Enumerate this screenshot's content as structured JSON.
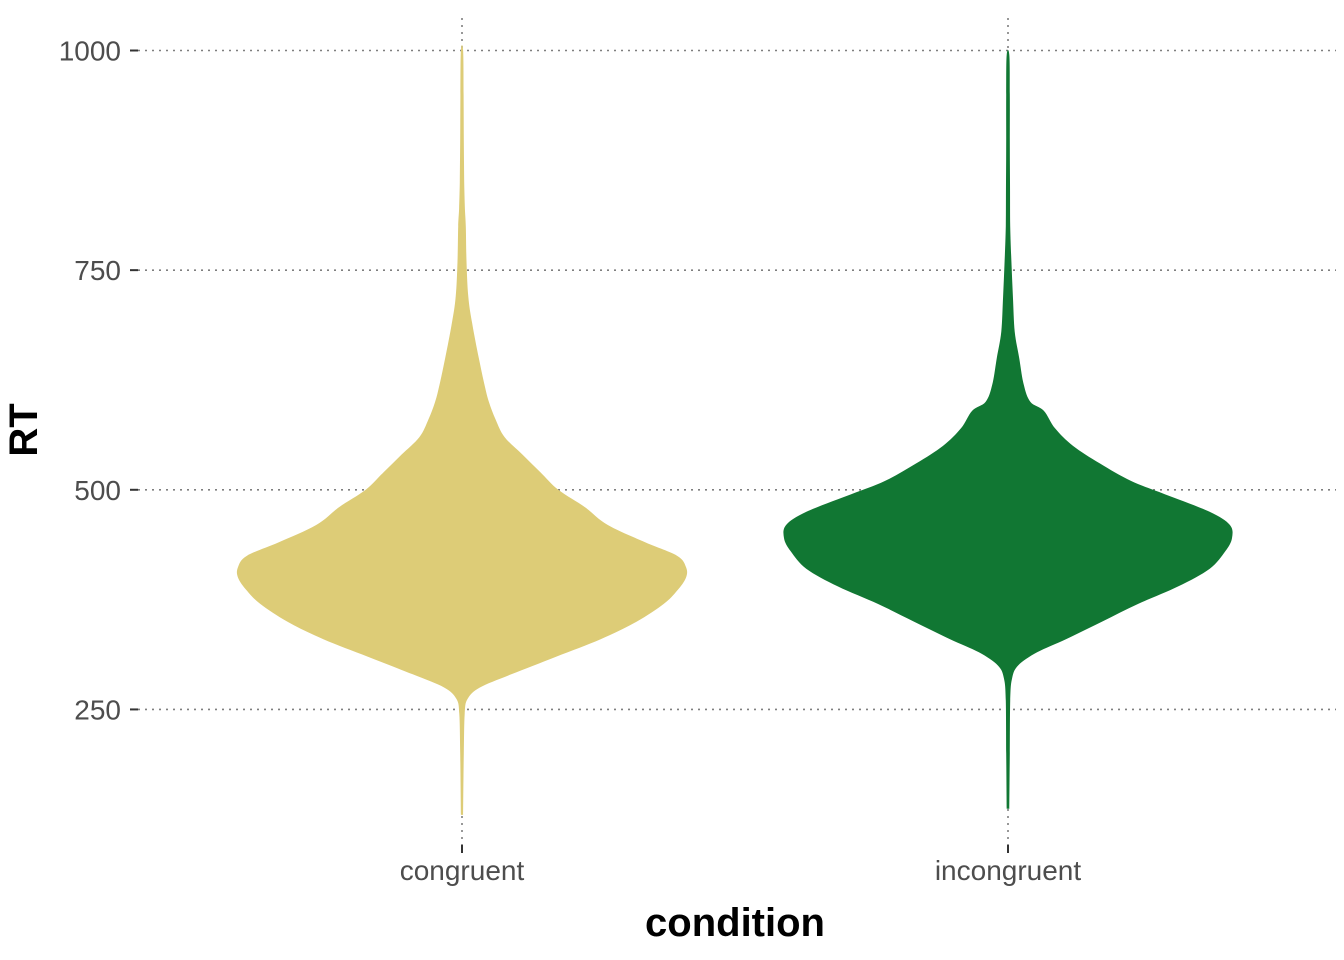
{
  "chart_data": {
    "type": "violin",
    "title": "",
    "xlabel": "condition",
    "ylabel": "RT",
    "categories": [
      "congruent",
      "incongruent"
    ],
    "ylim": [
      90,
      1037
    ],
    "yticks": [
      250,
      500,
      750,
      1000
    ],
    "grid": "major, dotted",
    "legend": "none",
    "series": [
      {
        "category": "congruent",
        "color": "#DDCC77",
        "min": 130,
        "max": 1000,
        "density": [
          [
            130,
            0.005
          ],
          [
            200,
            0.008
          ],
          [
            245,
            0.012
          ],
          [
            262,
            0.025
          ],
          [
            275,
            0.08
          ],
          [
            290,
            0.22
          ],
          [
            310,
            0.42
          ],
          [
            330,
            0.62
          ],
          [
            350,
            0.78
          ],
          [
            370,
            0.9
          ],
          [
            385,
            0.96
          ],
          [
            400,
            1.0
          ],
          [
            412,
            1.0
          ],
          [
            425,
            0.96
          ],
          [
            440,
            0.82
          ],
          [
            460,
            0.65
          ],
          [
            480,
            0.55
          ],
          [
            500,
            0.43
          ],
          [
            520,
            0.35
          ],
          [
            540,
            0.27
          ],
          [
            560,
            0.19
          ],
          [
            580,
            0.15
          ],
          [
            600,
            0.12
          ],
          [
            620,
            0.1
          ],
          [
            650,
            0.075
          ],
          [
            690,
            0.045
          ],
          [
            720,
            0.028
          ],
          [
            760,
            0.02
          ],
          [
            800,
            0.017
          ],
          [
            820,
            0.013
          ],
          [
            850,
            0.01
          ],
          [
            900,
            0.008
          ],
          [
            950,
            0.007
          ],
          [
            1000,
            0.005
          ]
        ]
      },
      {
        "category": "incongruent",
        "color": "#117733",
        "min": 137,
        "max": 995,
        "density": [
          [
            137,
            0.006
          ],
          [
            200,
            0.008
          ],
          [
            260,
            0.01
          ],
          [
            285,
            0.018
          ],
          [
            300,
            0.045
          ],
          [
            315,
            0.13
          ],
          [
            330,
            0.26
          ],
          [
            350,
            0.42
          ],
          [
            370,
            0.58
          ],
          [
            390,
            0.76
          ],
          [
            410,
            0.9
          ],
          [
            430,
            0.97
          ],
          [
            445,
            1.0
          ],
          [
            460,
            0.99
          ],
          [
            475,
            0.9
          ],
          [
            495,
            0.7
          ],
          [
            510,
            0.55
          ],
          [
            530,
            0.41
          ],
          [
            550,
            0.29
          ],
          [
            570,
            0.21
          ],
          [
            590,
            0.16
          ],
          [
            600,
            0.1
          ],
          [
            620,
            0.07
          ],
          [
            650,
            0.05
          ],
          [
            680,
            0.03
          ],
          [
            720,
            0.022
          ],
          [
            760,
            0.015
          ],
          [
            800,
            0.01
          ],
          [
            850,
            0.009
          ],
          [
            900,
            0.008
          ],
          [
            950,
            0.008
          ],
          [
            995,
            0.006
          ]
        ]
      }
    ]
  }
}
